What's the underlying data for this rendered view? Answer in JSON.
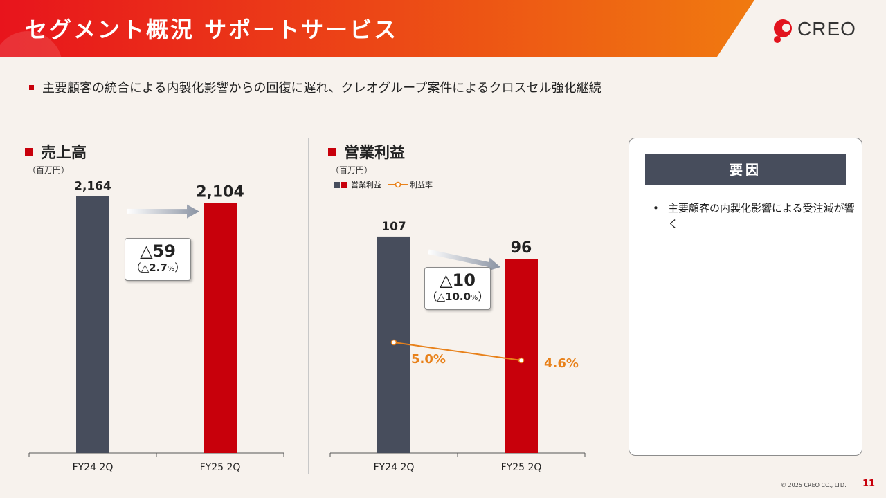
{
  "header": {
    "title": "セグメント概況 サポートサービス",
    "logo_text": "CREO",
    "logo_icon": "creo-logo-icon"
  },
  "subtitle": "主要顧客の統合による内製化影響からの回復に遅れ、クレオグループ案件によるクロスセル強化継続",
  "colors": {
    "banner_start": "#e8141c",
    "banner_end": "#f07a10",
    "bar_prev": "#474d5c",
    "bar_curr": "#c8000b",
    "line": "#e8811a",
    "accent": "#c8000b"
  },
  "chart_data": [
    {
      "type": "bar",
      "title": "売上高",
      "unit": "（百万円）",
      "categories": [
        "FY24 2Q",
        "FY25 2Q"
      ],
      "values": [
        2164,
        2104
      ],
      "value_labels": [
        "2,164",
        "2,104"
      ],
      "ylim": [
        0,
        2300
      ],
      "delta": {
        "main": "△59",
        "sub_open": "（△",
        "sub_value": "2.7",
        "sub_unit": "%",
        "sub_close": "）"
      }
    },
    {
      "type": "bar",
      "title": "営業利益",
      "unit": "（百万円）",
      "categories": [
        "FY24 2Q",
        "FY25 2Q"
      ],
      "series": [
        {
          "name": "営業利益",
          "values": [
            107,
            96
          ],
          "value_labels": [
            "107",
            "96"
          ]
        },
        {
          "name": "利益率",
          "type": "line",
          "values": [
            5.0,
            4.6
          ],
          "value_labels": [
            "5.0%",
            "4.6%"
          ]
        }
      ],
      "ylim": [
        0,
        135
      ],
      "delta": {
        "main": "△10",
        "sub_open": "（△",
        "sub_value": "10.0",
        "sub_unit": "%",
        "sub_close": "）"
      }
    }
  ],
  "factors": {
    "title": "要因",
    "items": [
      "主要顧客の内製化影響による受注減が響く"
    ]
  },
  "footer": {
    "copyright": "© 2025 CREO CO., LTD.",
    "page": "11"
  }
}
